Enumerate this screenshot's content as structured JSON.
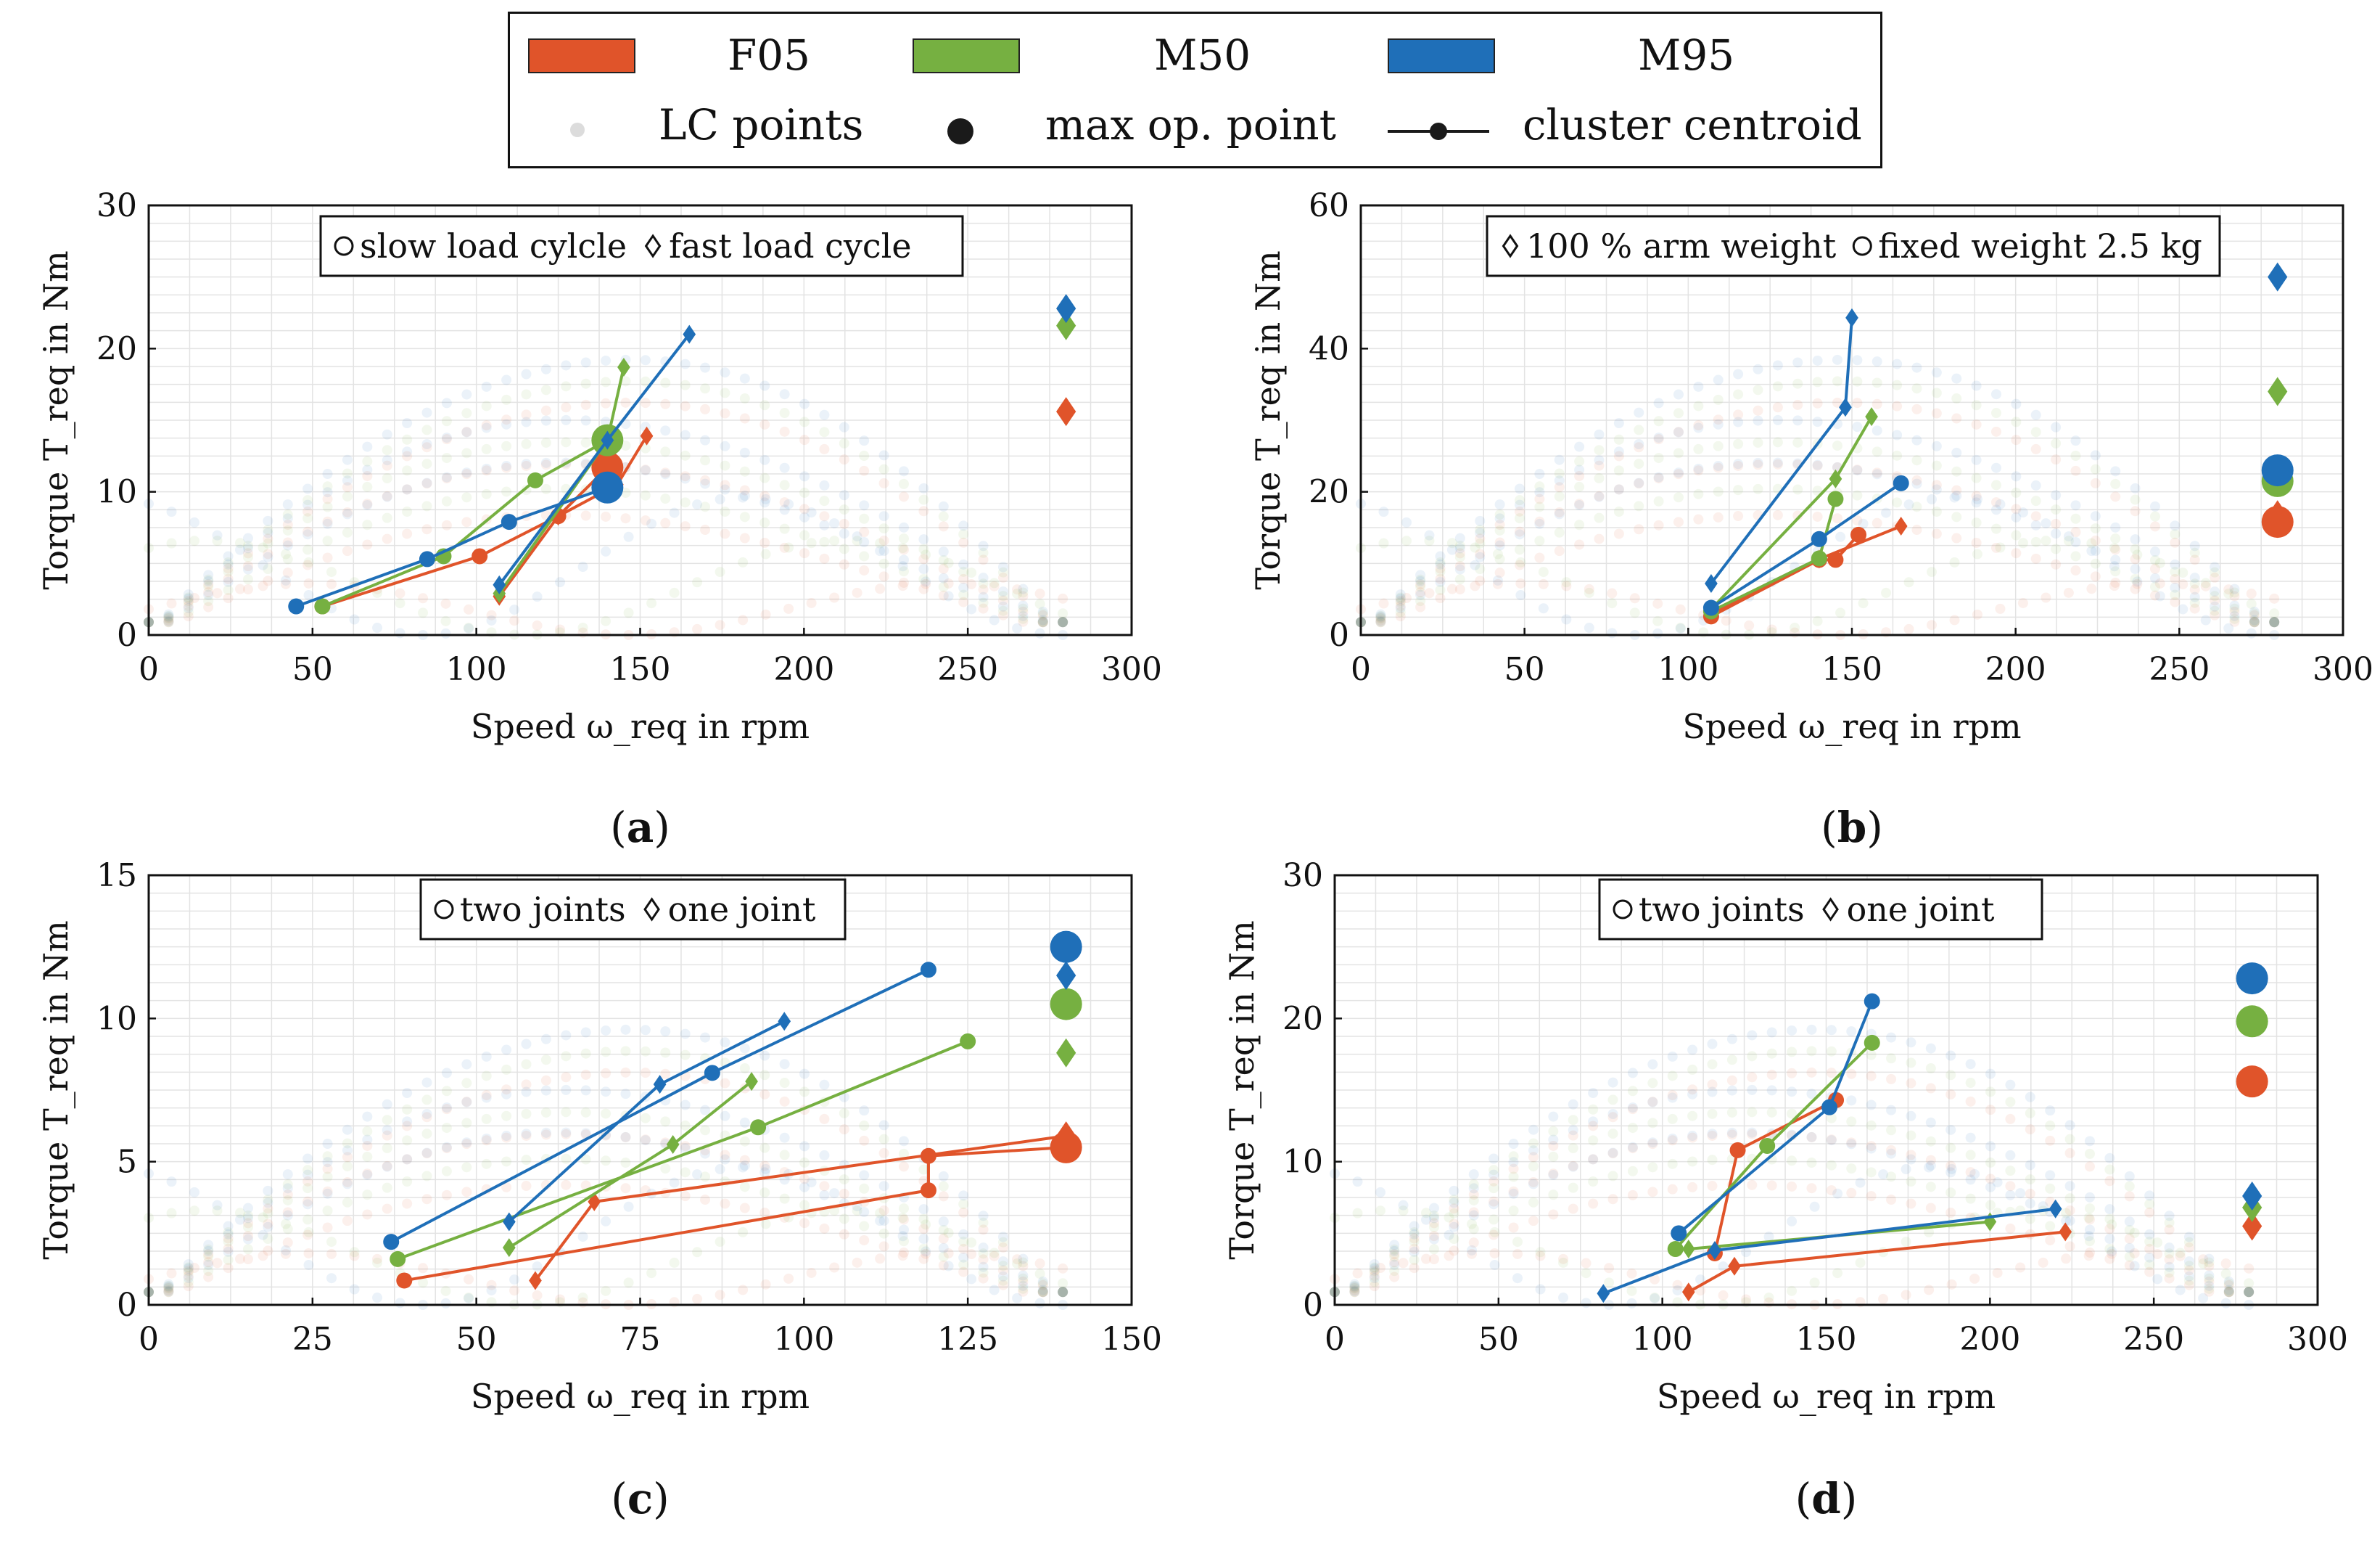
{
  "colors": {
    "F05": "#e0542a",
    "M50": "#76b041",
    "M95": "#1f6fb8",
    "grid": "#e3e3e3",
    "lc": "#bcc6cf"
  },
  "legend": {
    "series": [
      {
        "label": "F05",
        "color": "#e0542a"
      },
      {
        "label": "M50",
        "color": "#76b041"
      },
      {
        "label": "M95",
        "color": "#1f6fb8"
      }
    ],
    "markers": {
      "lc": "LC points",
      "max": "max op. point",
      "centroid": "cluster centroid"
    }
  },
  "panels": [
    {
      "id": "a",
      "label": "a",
      "inset_legend": {
        "circle": "slow load cylcle",
        "diamond": "fast load cycle"
      },
      "chart_data": {
        "type": "scatter",
        "xlabel": "Speed ω_req in rpm",
        "ylabel": "Torque T_req in Nm",
        "xlim": [
          0,
          300
        ],
        "ylim": [
          0,
          30
        ],
        "xticks": [
          0,
          50,
          100,
          150,
          200,
          250,
          300
        ],
        "yticks": [
          0,
          10,
          20,
          30
        ],
        "series": [
          {
            "name": "F05",
            "circle_path": [
              [
                53,
                2.0
              ],
              [
                101,
                5.5
              ],
              [
                125,
                8.3
              ],
              [
                140,
                11.7
              ]
            ],
            "diamond_path": [
              [
                107,
                2.7
              ],
              [
                125,
                8.3
              ],
              [
                143,
                10.5
              ],
              [
                152,
                13.9
              ]
            ],
            "max_circle": [
              140,
              11.7
            ],
            "max_diamond": [
              280,
              15.6
            ]
          },
          {
            "name": "M50",
            "circle_path": [
              [
                53,
                2.0
              ],
              [
                90,
                5.5
              ],
              [
                118,
                10.8
              ],
              [
                140,
                13.6
              ]
            ],
            "diamond_path": [
              [
                107,
                2.9
              ],
              [
                140,
                13.6
              ],
              [
                145,
                18.7
              ]
            ],
            "max_circle": [
              140,
              13.6
            ],
            "max_diamond": [
              280,
              21.6
            ]
          },
          {
            "name": "M95",
            "circle_path": [
              [
                45,
                2.0
              ],
              [
                85,
                5.3
              ],
              [
                110,
                7.9
              ],
              [
                140,
                10.3
              ]
            ],
            "diamond_path": [
              [
                107,
                3.5
              ],
              [
                140,
                13.6
              ],
              [
                165,
                21.0
              ]
            ],
            "max_circle": [
              140,
              10.3
            ],
            "max_diamond": [
              280,
              22.8
            ]
          }
        ]
      }
    },
    {
      "id": "b",
      "label": "b",
      "inset_legend": {
        "diamond": "100 % arm weight",
        "circle": "fixed weight 2.5 kg"
      },
      "chart_data": {
        "type": "scatter",
        "xlabel": "Speed ω_req in rpm",
        "ylabel": "Torque T_req in Nm",
        "xlim": [
          0,
          300
        ],
        "ylim": [
          0,
          60
        ],
        "xticks": [
          0,
          50,
          100,
          150,
          200,
          250,
          300
        ],
        "yticks": [
          0,
          20,
          40,
          60
        ],
        "series": [
          {
            "name": "F05",
            "circle_path": [
              [
                107,
                2.6
              ],
              [
                140,
                10.5
              ],
              [
                145,
                10.5
              ],
              [
                152,
                14.0
              ]
            ],
            "diamond_path": [
              [
                107,
                3.0
              ],
              [
                140,
                10.6
              ],
              [
                165,
                15.2
              ]
            ],
            "max_circle": [
              280,
              15.8
            ],
            "max_diamond": [
              280,
              16.8
            ]
          },
          {
            "name": "M50",
            "circle_path": [
              [
                107,
                3.3
              ],
              [
                140,
                10.7
              ],
              [
                145,
                19.0
              ]
            ],
            "diamond_path": [
              [
                107,
                3.6
              ],
              [
                145,
                21.8
              ],
              [
                156,
                30.5
              ]
            ],
            "max_circle": [
              280,
              21.5
            ],
            "max_diamond": [
              280,
              34.0
            ]
          },
          {
            "name": "M95",
            "circle_path": [
              [
                107,
                3.8
              ],
              [
                140,
                13.4
              ],
              [
                165,
                21.2
              ]
            ],
            "diamond_path": [
              [
                107,
                7.2
              ],
              [
                148,
                31.8
              ],
              [
                150,
                44.3
              ]
            ],
            "max_circle": [
              280,
              23.0
            ],
            "max_diamond": [
              280,
              50.0
            ]
          }
        ]
      }
    },
    {
      "id": "c",
      "label": "c",
      "inset_legend": {
        "circle": "two joints",
        "diamond": "one joint"
      },
      "chart_data": {
        "type": "scatter",
        "xlabel": "Speed ω_req in rpm",
        "ylabel": "Torque T_req in Nm",
        "xlim": [
          0,
          150
        ],
        "ylim": [
          0,
          15
        ],
        "xticks": [
          0,
          25,
          50,
          75,
          100,
          125,
          150
        ],
        "yticks": [
          0,
          5,
          10,
          15
        ],
        "series": [
          {
            "name": "F05",
            "circle_path": [
              [
                39,
                0.85
              ],
              [
                119,
                4.0
              ],
              [
                119,
                5.2
              ],
              [
                140,
                5.5
              ]
            ],
            "diamond_path": [
              [
                59,
                0.85
              ],
              [
                68,
                3.6
              ],
              [
                140,
                5.9
              ]
            ],
            "max_circle": [
              140,
              5.5
            ],
            "max_diamond": [
              140,
              5.9
            ]
          },
          {
            "name": "M50",
            "circle_path": [
              [
                38,
                1.6
              ],
              [
                93,
                6.2
              ],
              [
                125,
                9.2
              ]
            ],
            "diamond_path": [
              [
                55,
                2.0
              ],
              [
                80,
                5.6
              ],
              [
                92,
                7.8
              ]
            ],
            "max_circle": [
              140,
              10.5
            ],
            "max_diamond": [
              140,
              8.8
            ]
          },
          {
            "name": "M95",
            "circle_path": [
              [
                37,
                2.2
              ],
              [
                86,
                8.1
              ],
              [
                119,
                11.7
              ]
            ],
            "diamond_path": [
              [
                55,
                2.9
              ],
              [
                78,
                7.7
              ],
              [
                97,
                9.9
              ]
            ],
            "max_circle": [
              140,
              12.5
            ],
            "max_diamond": [
              140,
              11.5
            ]
          }
        ]
      }
    },
    {
      "id": "d",
      "label": "d",
      "inset_legend": {
        "circle": "two joints",
        "diamond": "one joint"
      },
      "chart_data": {
        "type": "scatter",
        "xlabel": "Speed ω_req in rpm",
        "ylabel": "Torque T_req in Nm",
        "xlim": [
          0,
          300
        ],
        "ylim": [
          0,
          30
        ],
        "xticks": [
          0,
          50,
          100,
          150,
          200,
          250,
          300
        ],
        "yticks": [
          0,
          10,
          20,
          30
        ],
        "series": [
          {
            "name": "F05",
            "circle_path": [
              [
                116,
                3.6
              ],
              [
                123,
                10.8
              ],
              [
                153,
                14.3
              ]
            ],
            "diamond_path": [
              [
                108,
                0.9
              ],
              [
                122,
                2.7
              ],
              [
                223,
                5.1
              ]
            ],
            "max_circle": [
              280,
              15.6
            ],
            "max_diamond": [
              280,
              5.5
            ]
          },
          {
            "name": "M50",
            "circle_path": [
              [
                104,
                3.9
              ],
              [
                132,
                11.1
              ],
              [
                164,
                18.3
              ]
            ],
            "diamond_path": [
              [
                108,
                3.9
              ],
              [
                200,
                5.8
              ]
            ],
            "max_circle": [
              280,
              19.8
            ],
            "max_diamond": [
              280,
              6.8
            ]
          },
          {
            "name": "M95",
            "circle_path": [
              [
                105,
                5.0
              ],
              [
                151,
                13.8
              ],
              [
                164,
                21.2
              ]
            ],
            "diamond_path": [
              [
                82,
                0.8
              ],
              [
                116,
                3.8
              ],
              [
                220,
                6.7
              ]
            ],
            "max_circle": [
              280,
              22.8
            ],
            "max_diamond": [
              280,
              7.6
            ]
          }
        ]
      }
    }
  ]
}
